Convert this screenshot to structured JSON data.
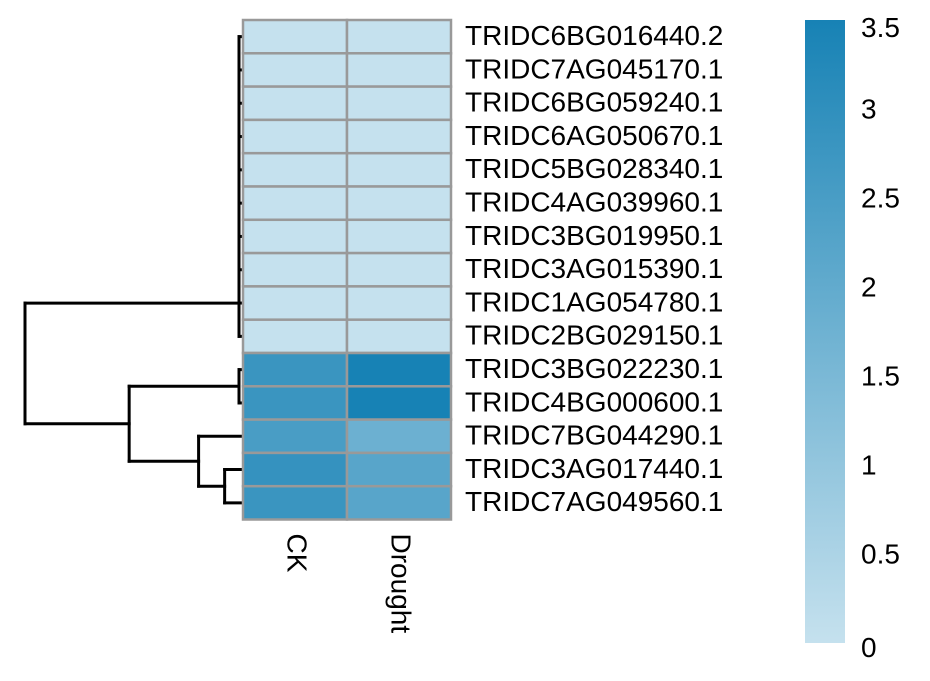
{
  "chart_data": {
    "type": "heatmap",
    "columns": [
      "CK",
      "Drought"
    ],
    "rows": [
      "TRIDC6BG016440.2",
      "TRIDC7AG045170.1",
      "TRIDC6BG059240.1",
      "TRIDC6AG050670.1",
      "TRIDC5BG028340.1",
      "TRIDC4AG039960.1",
      "TRIDC3BG019950.1",
      "TRIDC3AG015390.1",
      "TRIDC1AG054780.1",
      "TRIDC2BG029150.1",
      "TRIDC3BG022230.1",
      "TRIDC4BG000600.1",
      "TRIDC7BG044290.1",
      "TRIDC3AG017440.1",
      "TRIDC7AG049560.1"
    ],
    "values": [
      [
        0,
        0
      ],
      [
        0,
        0
      ],
      [
        0,
        0
      ],
      [
        0,
        0
      ],
      [
        0,
        0
      ],
      [
        0,
        0
      ],
      [
        0,
        0
      ],
      [
        0,
        0
      ],
      [
        0,
        0
      ],
      [
        0,
        0
      ],
      [
        2.8,
        3.5
      ],
      [
        2.8,
        3.5
      ],
      [
        2.5,
        1.8
      ],
      [
        2.9,
        2.2
      ],
      [
        2.8,
        2.2
      ]
    ],
    "dendrogram": [
      {
        "left": 0,
        "right": 1,
        "height": 0
      },
      {
        "left": 10,
        "right": 11,
        "height": 0
      },
      {
        "left": 13,
        "right": 14,
        "height": 0.4
      },
      {
        "left": "g0",
        "right": 2,
        "height": 0
      },
      {
        "left": "g3",
        "right": 3,
        "height": 0
      },
      {
        "left": "g4",
        "right": 4,
        "height": 0
      },
      {
        "left": "g5",
        "right": 5,
        "height": 0
      },
      {
        "left": "g6",
        "right": 6,
        "height": 0
      },
      {
        "left": "g7",
        "right": 7,
        "height": 0
      },
      {
        "left": "g8",
        "right": 8,
        "height": 0
      },
      {
        "left": "g9",
        "right": 9,
        "height": 0
      },
      {
        "left": 12,
        "right": "g2",
        "height": 1.0
      },
      {
        "left": "g1",
        "right": "g11",
        "height": 2.6
      },
      {
        "left": "g10",
        "right": "g12",
        "height": 5.0
      }
    ],
    "colorbar": {
      "min": 0,
      "max": 3.5,
      "ticks": [
        "0",
        "0.5",
        "1",
        "1.5",
        "2",
        "2.5",
        "3",
        "3.5"
      ],
      "low_color": "#c5e1ee",
      "high_color": "#1782b5"
    },
    "cell_border_color": "#999999"
  }
}
